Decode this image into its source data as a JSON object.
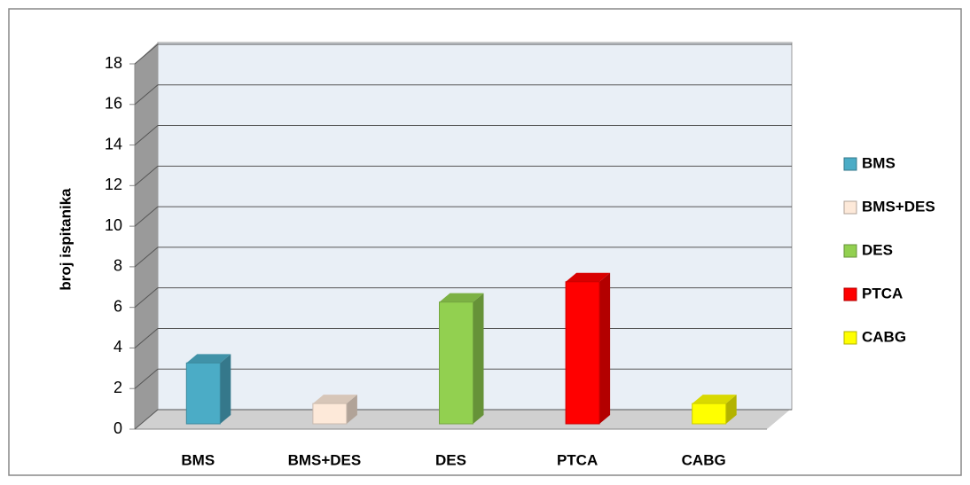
{
  "chart_data": {
    "type": "bar3d",
    "y_label": "broj ispitanika",
    "categories": [
      "BMS",
      "BMS+DES",
      "DES",
      "PTCA",
      "CABG"
    ],
    "values": [
      3,
      1,
      6,
      7,
      1
    ],
    "colors": [
      "#4bacc6",
      "#fde9d9",
      "#92d050",
      "#ff0000",
      "#ffff00"
    ],
    "ylim": [
      0,
      18
    ],
    "yticks": [
      0,
      2,
      4,
      6,
      8,
      10,
      12,
      14,
      16,
      18
    ],
    "grid": true,
    "legend": "right"
  }
}
